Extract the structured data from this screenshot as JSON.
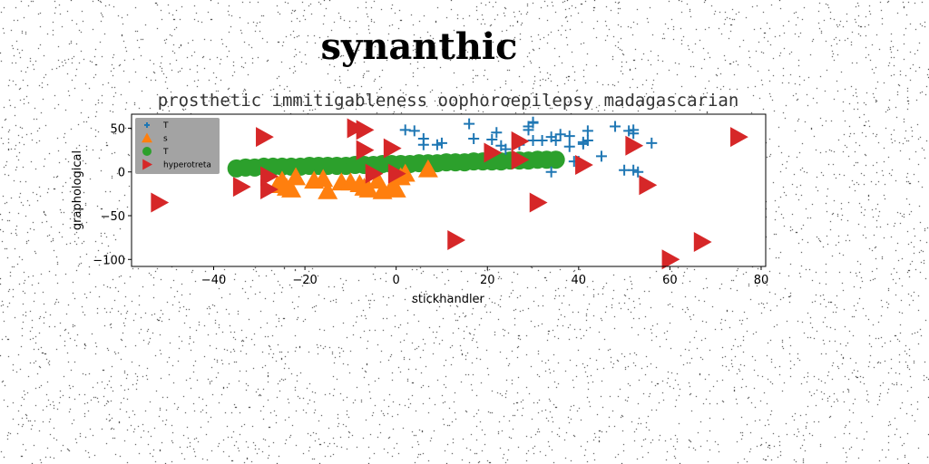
{
  "figure": {
    "suptitle": "synanthic"
  },
  "chart_data": {
    "type": "scatter",
    "title": "prosthetic immitigableness oophoroepilepsy madagascarian",
    "xlabel": "stickhandler",
    "ylabel": "graphological",
    "xlim": [
      -58,
      81
    ],
    "ylim": [
      -108,
      66
    ],
    "xticks": [
      -40,
      -20,
      0,
      20,
      40,
      60,
      80
    ],
    "yticks": [
      50,
      0,
      -50,
      -100
    ],
    "grid": false,
    "legend": {
      "placement": "top-left"
    },
    "series": [
      {
        "name": "T",
        "marker": "plus",
        "color": "#1f77b4",
        "points": [
          [
            2,
            48
          ],
          [
            4,
            47
          ],
          [
            6,
            38
          ],
          [
            6,
            31
          ],
          [
            9,
            31
          ],
          [
            10,
            33
          ],
          [
            16,
            55
          ],
          [
            17,
            38
          ],
          [
            21,
            37
          ],
          [
            22,
            45
          ],
          [
            23,
            30
          ],
          [
            24,
            26
          ],
          [
            27,
            31
          ],
          [
            29,
            48
          ],
          [
            29,
            52
          ],
          [
            30,
            57
          ],
          [
            30,
            56
          ],
          [
            30,
            36
          ],
          [
            32,
            36
          ],
          [
            35,
            36
          ],
          [
            34,
            40
          ],
          [
            36,
            43
          ],
          [
            38,
            41
          ],
          [
            38,
            29
          ],
          [
            39,
            12
          ],
          [
            40,
            12
          ],
          [
            41,
            34
          ],
          [
            41,
            32
          ],
          [
            42,
            47
          ],
          [
            42,
            36
          ],
          [
            45,
            18
          ],
          [
            48,
            52
          ],
          [
            50,
            2
          ],
          [
            51,
            47
          ],
          [
            52,
            44
          ],
          [
            52,
            48
          ],
          [
            52,
            2
          ],
          [
            53,
            0
          ],
          [
            56,
            33
          ],
          [
            34,
            0
          ]
        ]
      },
      {
        "name": "s",
        "marker": "triangle-up",
        "color": "#ff7f0e",
        "points": [
          [
            -26,
            -15
          ],
          [
            -25,
            -10
          ],
          [
            -24,
            -18
          ],
          [
            -23,
            -20
          ],
          [
            -22,
            -6
          ],
          [
            -18,
            -10
          ],
          [
            -16,
            -8
          ],
          [
            -15,
            -22
          ],
          [
            -12,
            -12
          ],
          [
            -10,
            -12
          ],
          [
            -8,
            -14
          ],
          [
            -7,
            -18
          ],
          [
            -6,
            -20
          ],
          [
            -4,
            -10
          ],
          [
            -3,
            -22
          ],
          [
            -1,
            -18
          ],
          [
            0,
            -20
          ],
          [
            1,
            -6
          ],
          [
            2,
            -2
          ],
          [
            7,
            3
          ]
        ]
      },
      {
        "name": "T",
        "marker": "circle",
        "color": "#2ca02c",
        "points": [
          [
            -35,
            4
          ],
          [
            -33,
            5
          ],
          [
            -31,
            5
          ],
          [
            -29,
            6
          ],
          [
            -27,
            6
          ],
          [
            -25,
            6
          ],
          [
            -23,
            6
          ],
          [
            -21,
            6
          ],
          [
            -19,
            7
          ],
          [
            -17,
            7
          ],
          [
            -15,
            7
          ],
          [
            -13,
            7
          ],
          [
            -11,
            7
          ],
          [
            -9,
            8
          ],
          [
            -7,
            8
          ],
          [
            -5,
            8
          ],
          [
            -3,
            9
          ],
          [
            -1,
            9
          ],
          [
            1,
            9
          ],
          [
            3,
            9
          ],
          [
            5,
            10
          ],
          [
            7,
            10
          ],
          [
            9,
            10
          ],
          [
            11,
            11
          ],
          [
            13,
            11
          ],
          [
            15,
            11
          ],
          [
            17,
            12
          ],
          [
            19,
            12
          ],
          [
            21,
            12
          ],
          [
            23,
            12
          ],
          [
            25,
            13
          ],
          [
            27,
            13
          ],
          [
            29,
            13
          ],
          [
            31,
            14
          ],
          [
            33,
            14
          ],
          [
            35,
            14
          ]
        ]
      },
      {
        "name": "hyperotreta",
        "marker": "triangle-right",
        "color": "#d62728",
        "points": [
          [
            -52,
            -35
          ],
          [
            -34,
            -17
          ],
          [
            -29,
            40
          ],
          [
            -28,
            -20
          ],
          [
            -28,
            -5
          ],
          [
            -9,
            50
          ],
          [
            -7,
            48
          ],
          [
            -7,
            25
          ],
          [
            -5,
            -2
          ],
          [
            -1,
            27
          ],
          [
            0,
            -2
          ],
          [
            13,
            -78
          ],
          [
            21,
            22
          ],
          [
            27,
            35
          ],
          [
            27,
            14
          ],
          [
            31,
            -35
          ],
          [
            41,
            8
          ],
          [
            52,
            30
          ],
          [
            55,
            -15
          ],
          [
            60,
            -100
          ],
          [
            67,
            -80
          ],
          [
            75,
            40
          ]
        ]
      }
    ]
  }
}
